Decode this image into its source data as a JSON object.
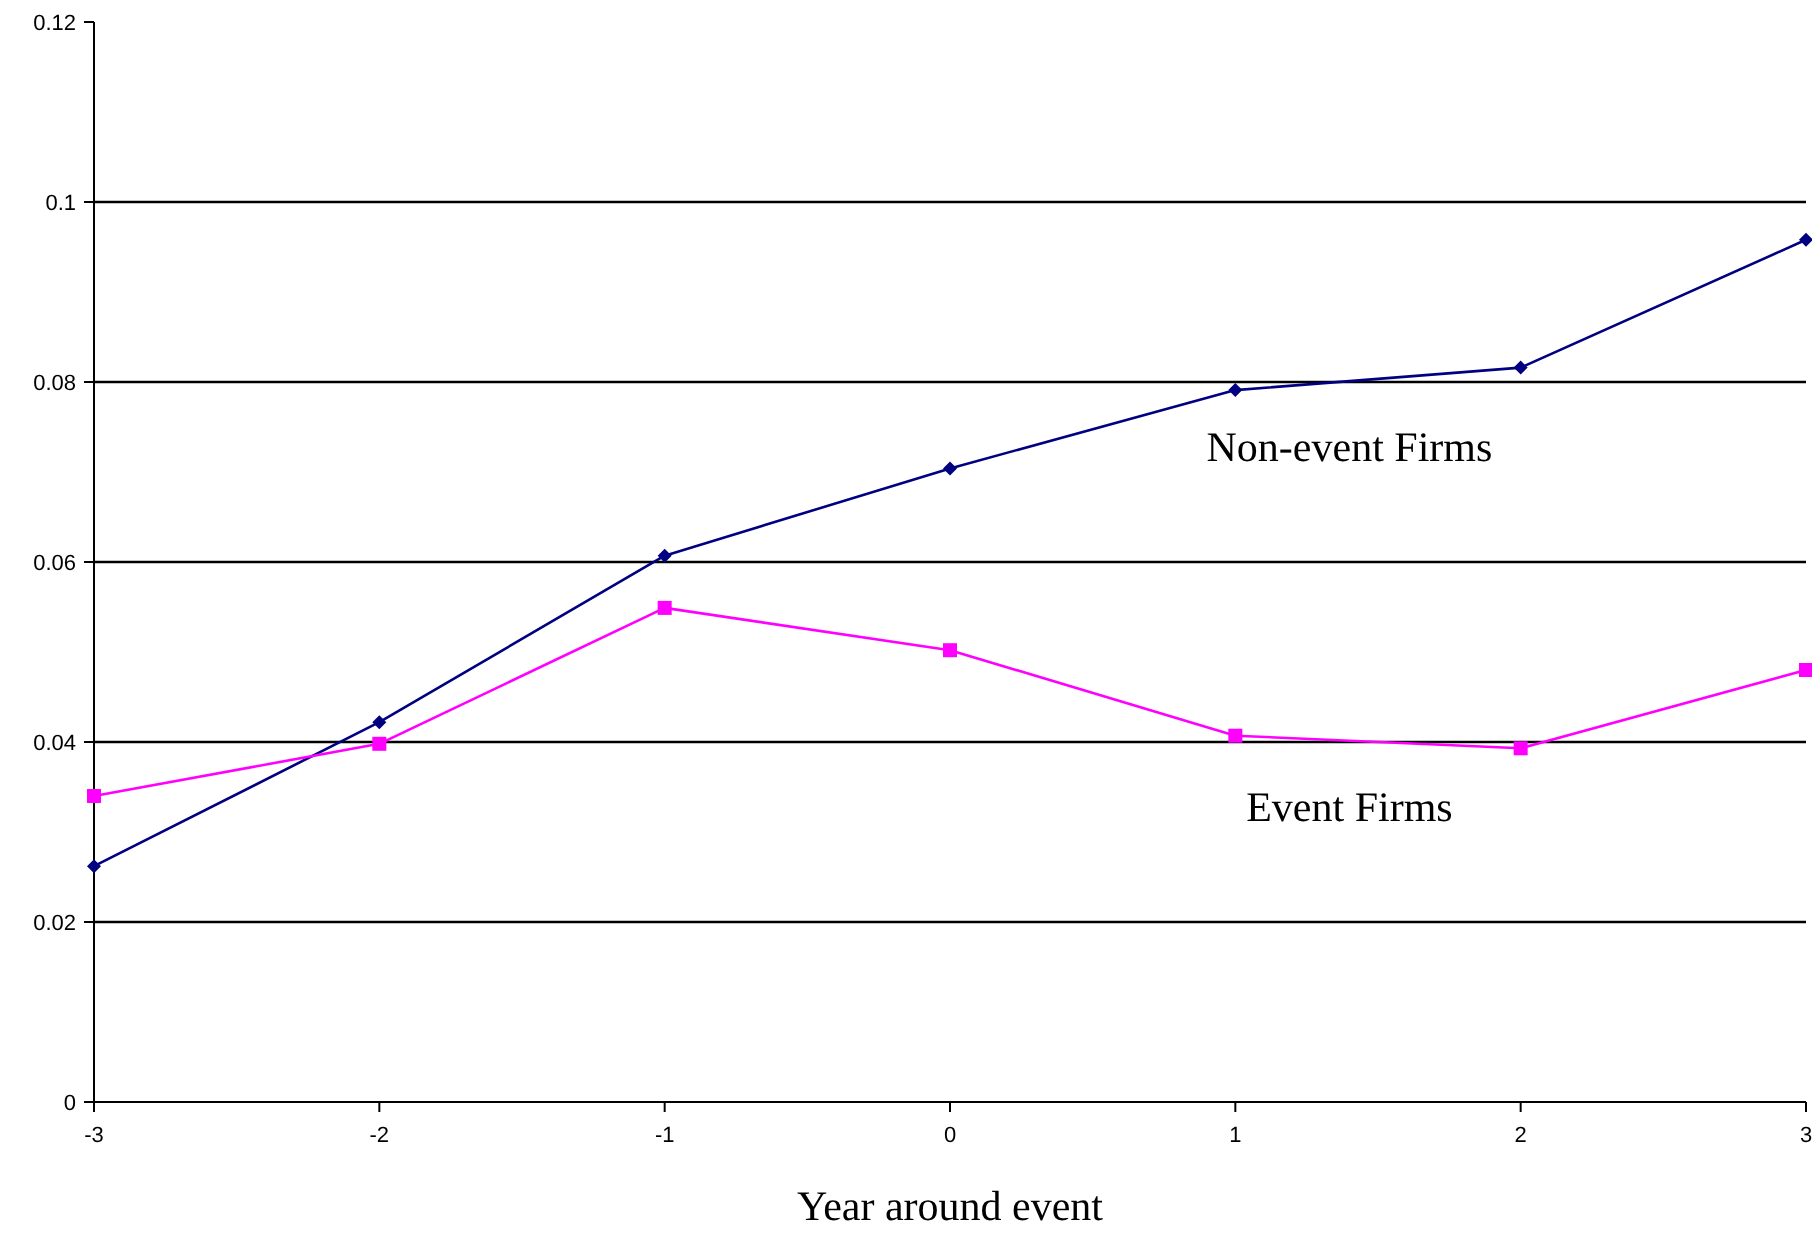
{
  "chart_data": {
    "type": "line",
    "xlabel": "Year around event",
    "x": [
      -3,
      -2,
      -1,
      0,
      1,
      2,
      3
    ],
    "xlim": [
      -3,
      3
    ],
    "xticks": [
      -3,
      -2,
      -1,
      0,
      1,
      2,
      3
    ],
    "ylim": [
      0,
      0.12
    ],
    "yticks": [
      0,
      0.02,
      0.04,
      0.06,
      0.08,
      0.1,
      0.12
    ],
    "grid": "y",
    "series": [
      {
        "name": "Non-event Firms",
        "color": "#000080",
        "marker": "diamond",
        "values": [
          0.0262,
          0.0422,
          0.0607,
          0.0704,
          0.0791,
          0.0816,
          0.0958
        ]
      },
      {
        "name": "Event Firms",
        "color": "#ff00ff",
        "marker": "square",
        "values": [
          0.034,
          0.0398,
          0.0549,
          0.0502,
          0.0407,
          0.0393,
          0.048
        ]
      }
    ]
  }
}
